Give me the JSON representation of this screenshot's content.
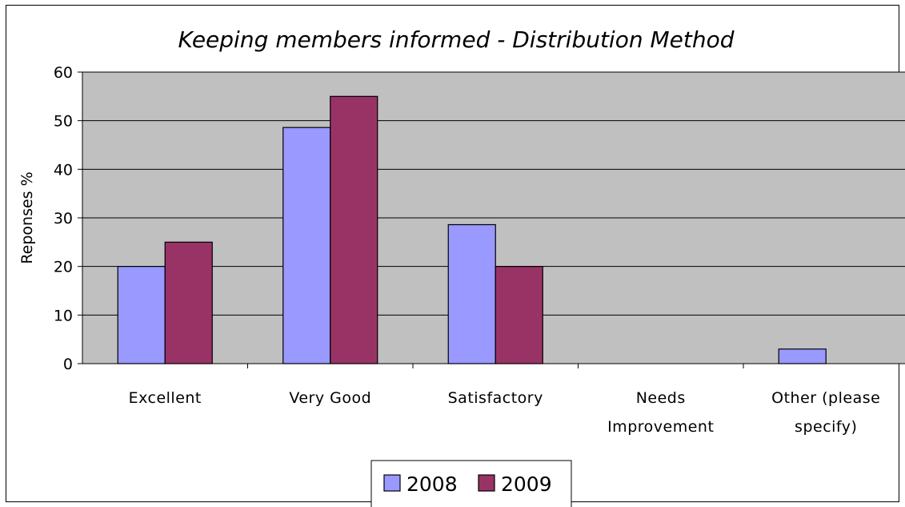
{
  "chart_data": {
    "type": "bar",
    "title": "Keeping members informed - Distribution Method",
    "xlabel": "",
    "ylabel": "Reponses %",
    "ylim": [
      0,
      60
    ],
    "yticks": [
      "0",
      "10",
      "20",
      "30",
      "40",
      "50",
      "60"
    ],
    "grid": true,
    "legend_position": "bottom",
    "categories": [
      [
        "Excellent"
      ],
      [
        "Very Good"
      ],
      [
        "Satisfactory"
      ],
      [
        "Needs",
        "Improvement"
      ],
      [
        "Other (please",
        "specify)"
      ]
    ],
    "series": [
      {
        "name": "2008",
        "color": "#9999ff",
        "values": [
          20,
          48.6,
          28.6,
          0,
          3
        ]
      },
      {
        "name": "2009",
        "color": "#993366",
        "values": [
          25,
          55,
          20,
          0,
          0
        ]
      }
    ],
    "plot_background": "#c0c0c0"
  }
}
